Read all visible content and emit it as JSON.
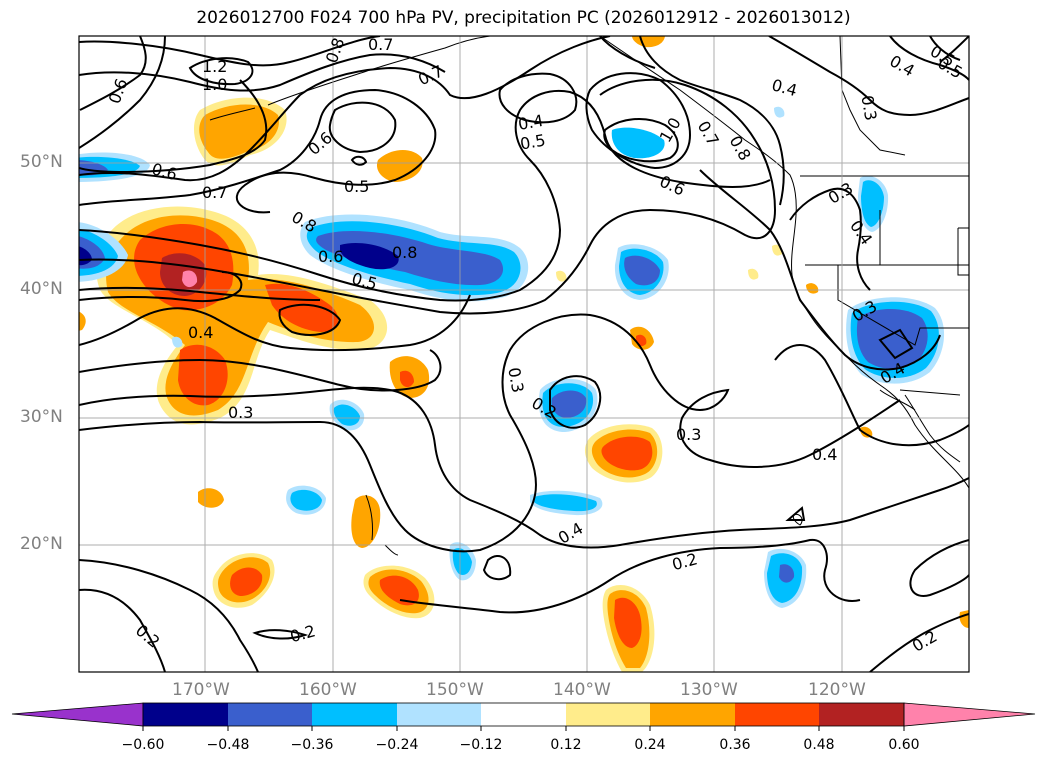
{
  "title": "2026012700 F024 700 hPa PV, precipitation PC (2026012912 - 2026013012)",
  "lat_labels": [
    "50°N",
    "40°N",
    "30°N",
    "20°N"
  ],
  "lon_labels": [
    "170°W",
    "160°W",
    "150°W",
    "140°W",
    "130°W",
    "120°W"
  ],
  "contour_labels": [
    "1.2",
    "1.0",
    "0.6",
    "0.8",
    "0.7",
    "0.7",
    "0.6",
    "0.8",
    "0.4",
    "0.5",
    "0.5",
    "1.0",
    "0.7",
    "0.4",
    "0.5",
    "0.6",
    "0.6",
    "0.7",
    "0.8",
    "0.6",
    "0.8",
    "0.5",
    "0.4",
    "0.3",
    "0.3",
    "0.2",
    "0.3",
    "0.4",
    "0.2",
    "0.4",
    "0.2",
    "0.2",
    "0.4",
    "0.3",
    "0.3",
    "0.4",
    "0.3",
    "0.4",
    "0.5",
    "0.2"
  ],
  "colorbar": {
    "ticks": [
      "−0.60",
      "−0.48",
      "−0.36",
      "−0.24",
      "−0.12",
      "0.12",
      "0.24",
      "0.36",
      "0.48",
      "0.60"
    ],
    "colors": [
      "#9932cc",
      "#00008b",
      "#3a5fcd",
      "#00bfff",
      "#b0e2ff",
      "#ffffff",
      "#ffec8b",
      "#ffa500",
      "#ff4500",
      "#b22222",
      "#ff82ab"
    ]
  }
}
